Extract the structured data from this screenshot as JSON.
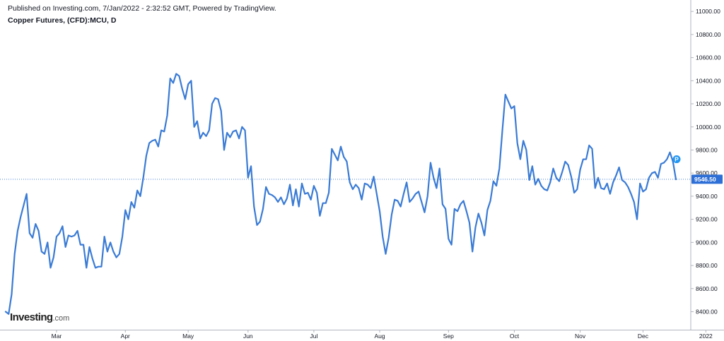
{
  "header": {
    "publisher": "Published on Investing.com, 7/Jan/2022 - 2:32:52 GMT, Powered by TradingView.",
    "title": "Copper Futures, (CFD):MCU, D"
  },
  "logo": {
    "text_main": "Investing",
    "text_suffix": ".com"
  },
  "colors": {
    "line": "#3a7bd5",
    "axis": "#b2b5be",
    "label_bg": "#2d6fd6",
    "marker": "#2196f3",
    "text": "#131722"
  },
  "chart_data": {
    "type": "line",
    "title": "Copper Futures, (CFD):MCU, D",
    "xlabel": "",
    "ylabel": "",
    "ylim": [
      8250,
      11050
    ],
    "y_ticks": [
      "8400.00",
      "8600.00",
      "8800.00",
      "9000.00",
      "9200.00",
      "9400.00",
      "9600.00",
      "9800.00",
      "10000.00",
      "10200.00",
      "10400.00",
      "10600.00",
      "10800.00",
      "11000.00"
    ],
    "x_ticks": [
      {
        "label": "Mar",
        "index": 17
      },
      {
        "label": "Apr",
        "index": 40
      },
      {
        "label": "May",
        "index": 61
      },
      {
        "label": "Jun",
        "index": 81
      },
      {
        "label": "Jul",
        "index": 103
      },
      {
        "label": "Aug",
        "index": 125
      },
      {
        "label": "Sep",
        "index": 148
      },
      {
        "label": "Oct",
        "index": 170
      },
      {
        "label": "Nov",
        "index": 192
      },
      {
        "label": "Dec",
        "index": 213
      },
      {
        "label": "2022",
        "index": 234
      }
    ],
    "last_price": "9546.50",
    "last_price_value": 9546.5,
    "marker_label": "P",
    "series": [
      {
        "values": [
          8400,
          8380,
          8550,
          8900,
          9100,
          9220,
          9320,
          9420,
          9080,
          9040,
          9160,
          9100,
          8920,
          8900,
          9000,
          8780,
          8870,
          9050,
          9080,
          9140,
          8960,
          9060,
          9050,
          9060,
          9100,
          8980,
          8980,
          8780,
          8960,
          8860,
          8780,
          8790,
          8790,
          9050,
          8920,
          9000,
          8920,
          8870,
          8900,
          9050,
          9280,
          9200,
          9350,
          9300,
          9450,
          9400,
          9560,
          9750,
          9860,
          9880,
          9890,
          9830,
          9970,
          9960,
          10100,
          10420,
          10380,
          10460,
          10440,
          10330,
          10240,
          10370,
          10400,
          10000,
          10050,
          9900,
          9950,
          9920,
          9970,
          10200,
          10250,
          10240,
          10140,
          9800,
          9950,
          9910,
          9960,
          9970,
          9900,
          10000,
          9970,
          9560,
          9660,
          9310,
          9150,
          9180,
          9290,
          9480,
          9420,
          9410,
          9390,
          9350,
          9390,
          9330,
          9380,
          9500,
          9320,
          9460,
          9310,
          9510,
          9420,
          9430,
          9370,
          9490,
          9430,
          9230,
          9340,
          9340,
          9430,
          9810,
          9760,
          9710,
          9830,
          9740,
          9700,
          9520,
          9460,
          9500,
          9470,
          9370,
          9510,
          9500,
          9470,
          9570,
          9420,
          9270,
          9050,
          8900,
          9040,
          9240,
          9370,
          9360,
          9310,
          9420,
          9520,
          9350,
          9380,
          9420,
          9440,
          9350,
          9260,
          9400,
          9690,
          9560,
          9470,
          9640,
          9330,
          9290,
          9030,
          8980,
          9290,
          9270,
          9330,
          9360,
          9270,
          9170,
          8920,
          9130,
          9250,
          9170,
          9060,
          9280,
          9360,
          9530,
          9490,
          9640,
          9970,
          10280,
          10220,
          10160,
          10180,
          9860,
          9720,
          9880,
          9800,
          9540,
          9660,
          9500,
          9550,
          9490,
          9460,
          9450,
          9520,
          9640,
          9560,
          9530,
          9610,
          9700,
          9670,
          9570,
          9430,
          9460,
          9630,
          9720,
          9720,
          9840,
          9810,
          9470,
          9560,
          9470,
          9460,
          9510,
          9420,
          9520,
          9580,
          9650,
          9540,
          9520,
          9480,
          9420,
          9350,
          9200,
          9510,
          9440,
          9460,
          9560,
          9600,
          9610,
          9560,
          9680,
          9690,
          9720,
          9780,
          9700,
          9546
        ]
      }
    ]
  }
}
